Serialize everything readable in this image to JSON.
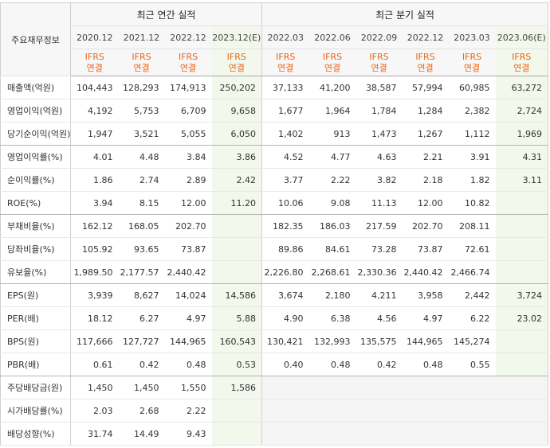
{
  "header": {
    "row_label": "주요재무정보",
    "annual_group": "최근 연간 실적",
    "quarterly_group": "최근 분기 실적",
    "annual_periods": [
      "2020.12",
      "2021.12",
      "2022.12",
      "2023.12(E)"
    ],
    "quarterly_periods": [
      "2022.03",
      "2022.06",
      "2022.09",
      "2022.12",
      "2023.03",
      "2023.06(E)"
    ],
    "standard_line1": "IFRS",
    "standard_line2": "연결"
  },
  "rows": [
    {
      "label": "매출액(억원)",
      "annual": [
        "104,443",
        "128,293",
        "174,913",
        "250,202"
      ],
      "quarterly": [
        "37,133",
        "41,200",
        "38,587",
        "57,994",
        "60,985",
        "63,272"
      ]
    },
    {
      "label": "영업이익(억원)",
      "annual": [
        "4,192",
        "5,753",
        "6,709",
        "9,658"
      ],
      "quarterly": [
        "1,677",
        "1,964",
        "1,784",
        "1,284",
        "2,382",
        "2,724"
      ]
    },
    {
      "label": "당기순이익(억원)",
      "annual": [
        "1,947",
        "3,521",
        "5,055",
        "6,050"
      ],
      "quarterly": [
        "1,402",
        "913",
        "1,473",
        "1,267",
        "1,112",
        "1,969"
      ]
    },
    {
      "label": "영업이익률(%)",
      "annual": [
        "4.01",
        "4.48",
        "3.84",
        "3.86"
      ],
      "quarterly": [
        "4.52",
        "4.77",
        "4.63",
        "2.21",
        "3.91",
        "4.31"
      ]
    },
    {
      "label": "순이익률(%)",
      "annual": [
        "1.86",
        "2.74",
        "2.89",
        "2.42"
      ],
      "quarterly": [
        "3.77",
        "2.22",
        "3.82",
        "2.18",
        "1.82",
        "3.11"
      ]
    },
    {
      "label": "ROE(%)",
      "annual": [
        "3.94",
        "8.15",
        "12.00",
        "11.20"
      ],
      "quarterly": [
        "10.06",
        "9.08",
        "11.13",
        "12.00",
        "10.82",
        ""
      ]
    },
    {
      "label": "부채비율(%)",
      "annual": [
        "162.12",
        "168.05",
        "202.70",
        ""
      ],
      "quarterly": [
        "182.35",
        "186.03",
        "217.59",
        "202.70",
        "208.11",
        ""
      ]
    },
    {
      "label": "당좌비율(%)",
      "annual": [
        "105.92",
        "93.65",
        "73.87",
        ""
      ],
      "quarterly": [
        "89.86",
        "84.61",
        "73.28",
        "73.87",
        "72.61",
        ""
      ]
    },
    {
      "label": "유보율(%)",
      "annual": [
        "1,989.50",
        "2,177.57",
        "2,440.42",
        ""
      ],
      "quarterly": [
        "2,226.80",
        "2,268.61",
        "2,330.36",
        "2,440.42",
        "2,466.74",
        ""
      ]
    },
    {
      "label": "EPS(원)",
      "annual": [
        "3,939",
        "8,627",
        "14,024",
        "14,586"
      ],
      "quarterly": [
        "3,674",
        "2,180",
        "4,211",
        "3,958",
        "2,442",
        "3,724"
      ]
    },
    {
      "label": "PER(배)",
      "annual": [
        "18.12",
        "6.27",
        "4.97",
        "5.88"
      ],
      "quarterly": [
        "4.90",
        "6.38",
        "4.56",
        "4.97",
        "6.22",
        "23.02"
      ]
    },
    {
      "label": "BPS(원)",
      "annual": [
        "117,666",
        "127,727",
        "144,965",
        "160,543"
      ],
      "quarterly": [
        "130,421",
        "132,993",
        "135,575",
        "144,965",
        "145,274",
        ""
      ]
    },
    {
      "label": "PBR(배)",
      "annual": [
        "0.61",
        "0.42",
        "0.48",
        "0.53"
      ],
      "quarterly": [
        "0.40",
        "0.48",
        "0.42",
        "0.48",
        "0.55",
        ""
      ]
    },
    {
      "label": "주당배당금(원)",
      "annual": [
        "1,450",
        "1,450",
        "1,550",
        "1,586"
      ],
      "quarterly": [
        "",
        "",
        "",
        "",
        "",
        ""
      ]
    },
    {
      "label": "시가배당률(%)",
      "annual": [
        "2.03",
        "2.68",
        "2.22",
        ""
      ],
      "quarterly": [
        "",
        "",
        "",
        "",
        "",
        ""
      ]
    },
    {
      "label": "배당성향(%)",
      "annual": [
        "31.74",
        "14.49",
        "9.43",
        ""
      ],
      "quarterly": [
        "",
        "",
        "",
        "",
        "",
        ""
      ]
    }
  ],
  "colors": {
    "ifrs_text": "#e8651a",
    "estimate_bg": "#f2f8ec",
    "header_bg": "#f7f7f7"
  }
}
